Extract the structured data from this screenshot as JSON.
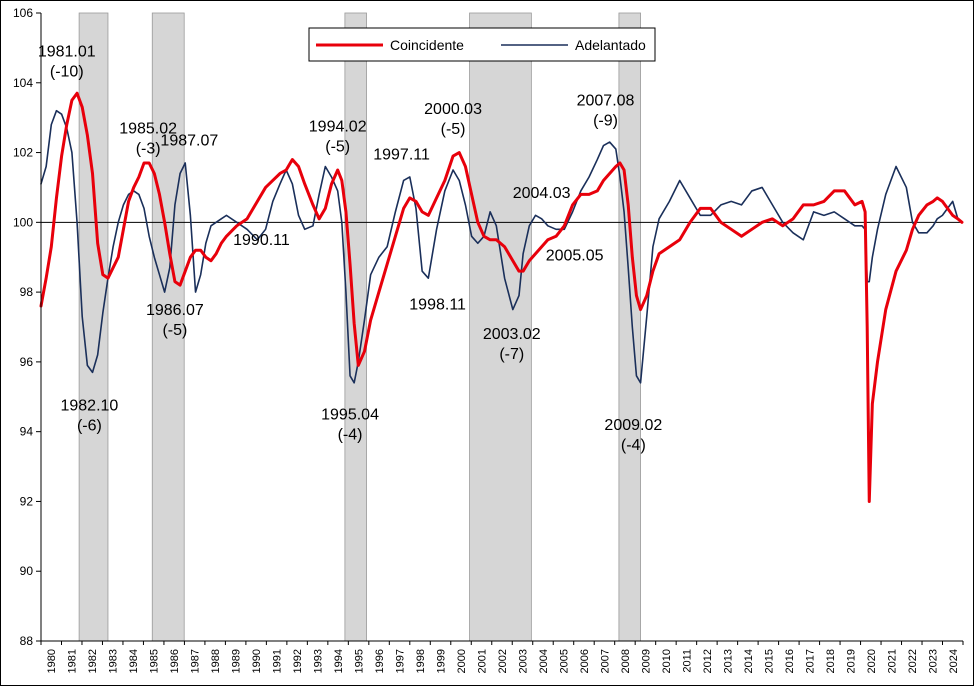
{
  "chart_data": {
    "type": "line",
    "ylim": [
      88,
      106
    ],
    "xlim": [
      1980.0,
      2024.75
    ],
    "baseline": 100,
    "ytick_values": [
      88,
      90,
      92,
      94,
      96,
      98,
      100,
      102,
      104,
      106
    ],
    "ytick_labels": [
      "88",
      "90",
      "92",
      "94",
      "96",
      "98",
      "100",
      "102",
      "104",
      "106"
    ],
    "xtick_labels": [
      "1980",
      "1981",
      "1982",
      "1983",
      "1984",
      "1985",
      "1986",
      "1987",
      "1988",
      "1989",
      "1990",
      "1991",
      "1992",
      "1993",
      "1994",
      "1995",
      "1996",
      "1997",
      "1998",
      "1999",
      "2000",
      "2001",
      "2002",
      "2003",
      "2004",
      "2005",
      "2006",
      "2007",
      "2008",
      "2009",
      "2010",
      "2011",
      "2012",
      "2013",
      "2014",
      "2015",
      "2016",
      "2017",
      "2018",
      "2019",
      "2020",
      "2021",
      "2022",
      "2023",
      "2024"
    ],
    "grid": false,
    "legend": {
      "position": "top-center"
    },
    "recessions": [
      [
        1981.85,
        1983.25
      ],
      [
        1985.4,
        1986.95
      ],
      [
        1994.75,
        1995.8
      ],
      [
        2000.8,
        2003.8
      ],
      [
        2008.05,
        2009.1
      ]
    ],
    "series": [
      {
        "name": "Coincidente",
        "color": "#e8000b",
        "x": [
          1980.0,
          1980.25,
          1980.5,
          1980.75,
          1981.0,
          1981.25,
          1981.5,
          1981.75,
          1982.0,
          1982.25,
          1982.5,
          1982.75,
          1983.0,
          1983.25,
          1983.5,
          1983.75,
          1984.0,
          1984.25,
          1984.5,
          1984.75,
          1985.0,
          1985.25,
          1985.5,
          1985.75,
          1986.0,
          1986.25,
          1986.5,
          1986.75,
          1987.0,
          1987.25,
          1987.5,
          1987.75,
          1988.0,
          1988.25,
          1988.5,
          1988.75,
          1989.0,
          1989.5,
          1990.0,
          1990.5,
          1990.9,
          1991.25,
          1991.6,
          1991.9,
          1992.2,
          1992.5,
          1992.8,
          1993.2,
          1993.5,
          1993.8,
          1994.1,
          1994.4,
          1994.6,
          1994.8,
          1995.0,
          1995.2,
          1995.4,
          1995.7,
          1996.0,
          1996.4,
          1996.8,
          1997.2,
          1997.6,
          1997.9,
          1998.2,
          1998.5,
          1998.8,
          1999.2,
          1999.6,
          2000.0,
          2000.3,
          2000.6,
          2000.9,
          2001.2,
          2001.5,
          2001.8,
          2002.1,
          2002.5,
          2002.9,
          2003.2,
          2003.4,
          2003.7,
          2004.0,
          2004.3,
          2004.6,
          2005.0,
          2005.4,
          2005.8,
          2006.2,
          2006.6,
          2007.0,
          2007.3,
          2007.6,
          2007.9,
          2008.1,
          2008.3,
          2008.5,
          2008.7,
          2008.9,
          2009.1,
          2009.4,
          2009.7,
          2010.0,
          2010.5,
          2011.0,
          2011.5,
          2012.0,
          2012.5,
          2013.0,
          2013.5,
          2014.0,
          2014.5,
          2015.0,
          2015.5,
          2016.0,
          2016.5,
          2017.0,
          2017.5,
          2018.0,
          2018.5,
          2019.0,
          2019.5,
          2019.85,
          2020.0,
          2020.1,
          2020.2,
          2020.35,
          2020.6,
          2021.0,
          2021.5,
          2022.0,
          2022.3,
          2022.6,
          2023.0,
          2023.3,
          2023.5,
          2023.75,
          2024.0,
          2024.25,
          2024.5,
          2024.7
        ],
        "values": [
          97.6,
          98.4,
          99.3,
          100.7,
          101.9,
          102.8,
          103.5,
          103.7,
          103.3,
          102.5,
          101.4,
          99.4,
          98.5,
          98.4,
          98.7,
          99.0,
          99.8,
          100.6,
          101.0,
          101.3,
          101.7,
          101.7,
          101.4,
          100.8,
          100.0,
          99.1,
          98.3,
          98.2,
          98.6,
          99.0,
          99.2,
          99.2,
          99.0,
          98.9,
          99.1,
          99.4,
          99.6,
          99.9,
          100.1,
          100.6,
          101.0,
          101.2,
          101.4,
          101.5,
          101.8,
          101.6,
          101.1,
          100.5,
          100.1,
          100.4,
          101.1,
          101.5,
          101.2,
          100.3,
          98.8,
          97.1,
          95.9,
          96.3,
          97.2,
          98.0,
          98.8,
          99.6,
          100.4,
          100.7,
          100.6,
          100.3,
          100.2,
          100.7,
          101.2,
          101.9,
          102.0,
          101.6,
          100.8,
          100.0,
          99.6,
          99.5,
          99.5,
          99.3,
          98.9,
          98.6,
          98.6,
          98.9,
          99.1,
          99.3,
          99.5,
          99.6,
          99.9,
          100.5,
          100.8,
          100.8,
          100.9,
          101.2,
          101.4,
          101.6,
          101.7,
          101.5,
          100.5,
          99.0,
          97.9,
          97.5,
          97.9,
          98.6,
          99.1,
          99.3,
          99.5,
          100.0,
          100.4,
          100.4,
          100.0,
          99.8,
          99.6,
          99.8,
          100.0,
          100.1,
          99.9,
          100.1,
          100.5,
          100.5,
          100.6,
          100.9,
          100.9,
          100.5,
          100.6,
          100.3,
          97.0,
          92.0,
          94.8,
          96.0,
          97.5,
          98.6,
          99.2,
          99.8,
          100.2,
          100.5,
          100.6,
          100.7,
          100.6,
          100.4,
          100.2,
          100.1,
          100.0
        ]
      },
      {
        "name": "Adelantado",
        "color": "#1a2f5a",
        "x": [
          1980.0,
          1980.25,
          1980.5,
          1980.75,
          1981.0,
          1981.25,
          1981.5,
          1981.75,
          1982.0,
          1982.25,
          1982.5,
          1982.75,
          1983.0,
          1983.25,
          1983.5,
          1983.75,
          1984.0,
          1984.25,
          1984.5,
          1984.75,
          1985.0,
          1985.25,
          1985.5,
          1985.75,
          1986.0,
          1986.25,
          1986.5,
          1986.75,
          1987.0,
          1987.25,
          1987.5,
          1987.75,
          1988.0,
          1988.25,
          1988.5,
          1988.75,
          1989.0,
          1989.5,
          1990.0,
          1990.5,
          1990.9,
          1991.25,
          1991.6,
          1991.9,
          1992.2,
          1992.5,
          1992.8,
          1993.2,
          1993.5,
          1993.8,
          1994.1,
          1994.4,
          1994.6,
          1994.8,
          1995.0,
          1995.2,
          1995.4,
          1995.7,
          1996.0,
          1996.4,
          1996.8,
          1997.2,
          1997.6,
          1997.9,
          1998.2,
          1998.5,
          1998.8,
          1999.2,
          1999.6,
          2000.0,
          2000.3,
          2000.6,
          2000.9,
          2001.2,
          2001.5,
          2001.8,
          2002.1,
          2002.5,
          2002.9,
          2003.2,
          2003.4,
          2003.7,
          2004.0,
          2004.3,
          2004.6,
          2005.0,
          2005.4,
          2005.8,
          2006.2,
          2006.6,
          2007.0,
          2007.3,
          2007.6,
          2007.9,
          2008.1,
          2008.3,
          2008.5,
          2008.7,
          2008.9,
          2009.1,
          2009.4,
          2009.7,
          2010.0,
          2010.5,
          2011.0,
          2011.5,
          2012.0,
          2012.5,
          2013.0,
          2013.5,
          2014.0,
          2014.5,
          2015.0,
          2015.5,
          2016.0,
          2016.5,
          2017.0,
          2017.5,
          2018.0,
          2018.5,
          2019.0,
          2019.5,
          2019.85,
          2020.0,
          2020.1,
          2020.2,
          2020.35,
          2020.6,
          2021.0,
          2021.5,
          2022.0,
          2022.3,
          2022.6,
          2023.0,
          2023.3,
          2023.5,
          2023.75,
          2024.0,
          2024.25,
          2024.5,
          2024.7
        ],
        "values": [
          101.1,
          101.6,
          102.8,
          103.2,
          103.1,
          102.7,
          102.0,
          100.0,
          97.3,
          95.9,
          95.7,
          96.2,
          97.4,
          98.4,
          99.3,
          100.0,
          100.5,
          100.8,
          100.9,
          100.8,
          100.4,
          99.6,
          99.0,
          98.5,
          98.0,
          98.7,
          100.5,
          101.4,
          101.7,
          100.2,
          98.0,
          98.5,
          99.4,
          99.9,
          100.0,
          100.1,
          100.2,
          100.0,
          99.8,
          99.5,
          99.8,
          100.6,
          101.1,
          101.5,
          101.1,
          100.2,
          99.8,
          99.9,
          100.8,
          101.6,
          101.3,
          100.9,
          100.0,
          98.0,
          95.6,
          95.4,
          96.0,
          97.2,
          98.5,
          99.0,
          99.3,
          100.3,
          101.2,
          101.3,
          100.4,
          98.6,
          98.4,
          99.8,
          100.9,
          101.5,
          101.2,
          100.5,
          99.6,
          99.4,
          99.6,
          100.3,
          99.9,
          98.4,
          97.5,
          97.9,
          99.1,
          99.9,
          100.2,
          100.1,
          99.9,
          99.8,
          99.8,
          100.3,
          100.9,
          101.3,
          101.8,
          102.2,
          102.3,
          102.1,
          101.3,
          100.3,
          98.7,
          97.0,
          95.6,
          95.4,
          97.3,
          99.3,
          100.1,
          100.6,
          101.2,
          100.7,
          100.2,
          100.2,
          100.5,
          100.6,
          100.5,
          100.9,
          101.0,
          100.5,
          100.0,
          99.7,
          99.5,
          100.3,
          100.2,
          100.3,
          100.1,
          99.9,
          99.9,
          99.8,
          98.3,
          98.3,
          99.0,
          99.8,
          100.8,
          101.6,
          101.0,
          100.0,
          99.7,
          99.7,
          99.9,
          100.1,
          100.2,
          100.4,
          100.6,
          100.1,
          100.0
        ]
      }
    ],
    "annotations": [
      {
        "line1": "1981.01",
        "line2": "(-10)",
        "x": 1981.25,
        "y": 104.75
      },
      {
        "line1": "1982.10",
        "line2": "(-6)",
        "x": 1982.35,
        "y": 94.6
      },
      {
        "line1": "1985.02",
        "line2": "(-3)",
        "x": 1985.2,
        "y": 102.55
      },
      {
        "line1": "1987.07",
        "line2": "",
        "x": 1987.2,
        "y": 102.2
      },
      {
        "line1": "1986.07",
        "line2": "(-5)",
        "x": 1986.5,
        "y": 97.35
      },
      {
        "line1": "1990.11",
        "line2": "",
        "x": 1990.7,
        "y": 99.35
      },
      {
        "line1": "1994.02",
        "line2": "(-5)",
        "x": 1994.4,
        "y": 102.6
      },
      {
        "line1": "1995.04",
        "line2": "(-4)",
        "x": 1995.0,
        "y": 94.35
      },
      {
        "line1": "1997.11",
        "line2": "",
        "x": 1997.5,
        "y": 101.8
      },
      {
        "line1": "1998.11",
        "line2": "",
        "x": 1999.25,
        "y": 97.5
      },
      {
        "line1": "2000.03",
        "line2": "(-5)",
        "x": 2000.0,
        "y": 103.1
      },
      {
        "line1": "2003.02",
        "line2": "(-7)",
        "x": 2002.85,
        "y": 96.65
      },
      {
        "line1": "2004.03",
        "line2": "",
        "x": 2004.3,
        "y": 100.7
      },
      {
        "line1": "2005.05",
        "line2": "",
        "x": 2005.9,
        "y": 98.9
      },
      {
        "line1": "2007.08",
        "line2": "(-9)",
        "x": 2007.4,
        "y": 103.35
      },
      {
        "line1": "2009.02",
        "line2": "(-4)",
        "x": 2008.75,
        "y": 94.05
      }
    ]
  }
}
